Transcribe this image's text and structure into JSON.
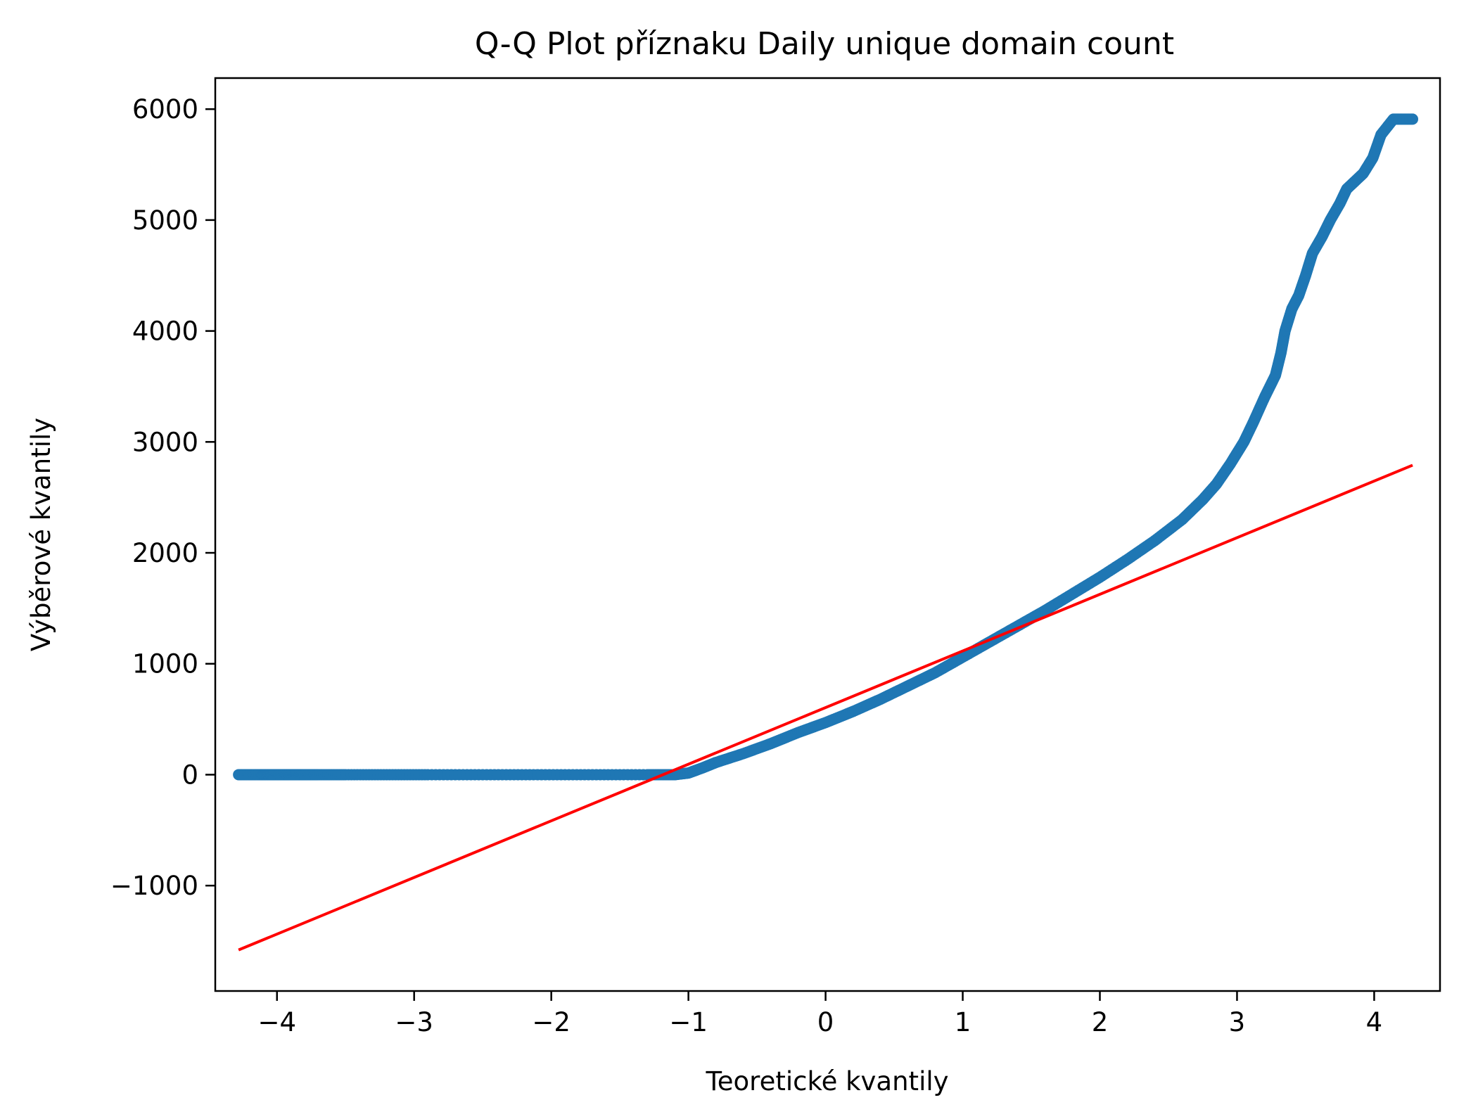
{
  "chart_data": {
    "type": "scatter",
    "title": "Q-Q Plot příznaku Daily unique domain count",
    "xlabel": "Teoretické kvantily",
    "ylabel": "Výběrové kvantily",
    "xlim": [
      -4.45,
      4.48
    ],
    "ylim": [
      -1950,
      6280
    ],
    "xticks": [
      -4,
      -3,
      -2,
      -1,
      0,
      1,
      2,
      3,
      4
    ],
    "xtick_labels": [
      "−4",
      "−3",
      "−2",
      "−1",
      "0",
      "1",
      "2",
      "3",
      "4"
    ],
    "yticks": [
      -1000,
      0,
      1000,
      2000,
      3000,
      4000,
      5000,
      6000
    ],
    "ytick_labels": [
      "−1000",
      "0",
      "1000",
      "2000",
      "3000",
      "4000",
      "5000",
      "6000"
    ],
    "grid": false,
    "series": [
      {
        "kind": "points",
        "color": "#1f77b4",
        "points": [
          [
            -4.28,
            0
          ],
          [
            -4.12,
            0
          ],
          [
            -4.03,
            0
          ],
          [
            -3.95,
            0
          ],
          [
            -3.9,
            0
          ],
          [
            -3.85,
            0
          ],
          [
            -3.8,
            0
          ],
          [
            -3.7,
            0
          ],
          [
            -3.5,
            0
          ],
          [
            -3.2,
            0
          ],
          [
            -2.9,
            0
          ],
          [
            -2.5,
            0
          ],
          [
            -2.1,
            0
          ],
          [
            -1.7,
            0
          ],
          [
            -1.3,
            0
          ],
          [
            -1.1,
            0
          ],
          [
            -1.0,
            15
          ],
          [
            -0.9,
            60
          ],
          [
            -0.8,
            110
          ],
          [
            -0.6,
            190
          ],
          [
            -0.4,
            280
          ],
          [
            -0.2,
            380
          ],
          [
            0.0,
            470
          ],
          [
            0.2,
            570
          ],
          [
            0.4,
            680
          ],
          [
            0.6,
            800
          ],
          [
            0.8,
            920
          ],
          [
            1.0,
            1060
          ],
          [
            1.2,
            1200
          ],
          [
            1.4,
            1340
          ],
          [
            1.6,
            1480
          ],
          [
            1.8,
            1630
          ],
          [
            2.0,
            1780
          ],
          [
            2.2,
            1940
          ],
          [
            2.4,
            2110
          ],
          [
            2.6,
            2300
          ],
          [
            2.75,
            2480
          ],
          [
            2.85,
            2620
          ],
          [
            2.95,
            2800
          ],
          [
            3.05,
            3000
          ],
          [
            3.12,
            3180
          ],
          [
            3.2,
            3400
          ],
          [
            3.28,
            3600
          ],
          [
            3.32,
            3800
          ],
          [
            3.35,
            4000
          ],
          [
            3.4,
            4200
          ],
          [
            3.45,
            4320
          ],
          [
            3.5,
            4500
          ],
          [
            3.55,
            4700
          ],
          [
            3.62,
            4850
          ],
          [
            3.68,
            5000
          ],
          [
            3.75,
            5150
          ],
          [
            3.8,
            5280
          ],
          [
            3.86,
            5350
          ],
          [
            3.92,
            5420
          ],
          [
            3.99,
            5560
          ],
          [
            4.05,
            5770
          ],
          [
            4.14,
            5910
          ],
          [
            4.28,
            5910
          ]
        ]
      },
      {
        "kind": "line",
        "color": "#ff0000",
        "points": [
          [
            -4.28,
            -1580
          ],
          [
            4.28,
            2790
          ]
        ]
      }
    ]
  }
}
